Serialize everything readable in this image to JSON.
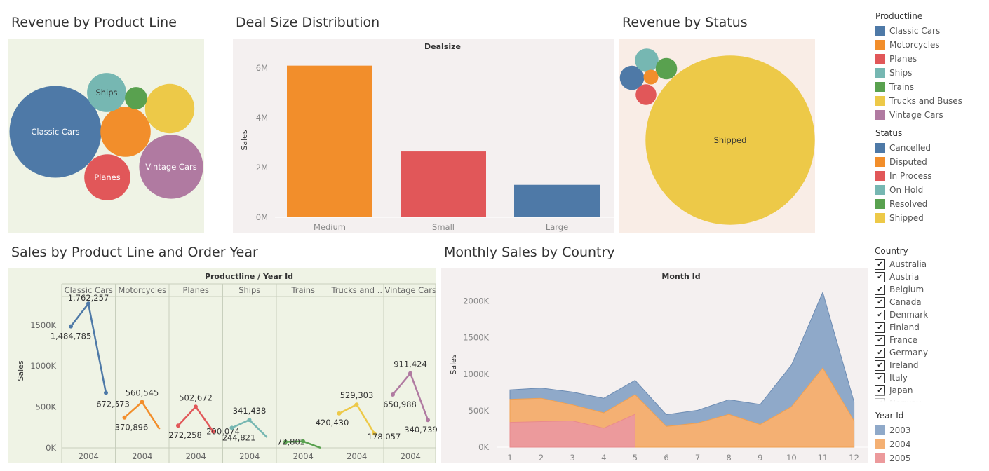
{
  "titles": {
    "product_line": "Revenue by Product Line",
    "deal_size": "Deal Size Distribution",
    "status": "Revenue by Status",
    "year_lines": "Sales by Product Line and Order Year",
    "monthly": "Monthly Sales by Country"
  },
  "colors": {
    "classic_cars": "#4e79a7",
    "motorcycles": "#f28e2b",
    "planes": "#e15759",
    "ships": "#76b7b2",
    "trains": "#59a14f",
    "trucks": "#edc948",
    "vintage": "#b07aa1",
    "bg_green": "#eff3e5",
    "bg_grey": "#f4f0f0",
    "bg_pink": "#f9ede6"
  },
  "legend_productline": {
    "title": "Productline",
    "items": [
      {
        "label": "Classic Cars",
        "color": "#4e79a7"
      },
      {
        "label": "Motorcycles",
        "color": "#f28e2b"
      },
      {
        "label": "Planes",
        "color": "#e15759"
      },
      {
        "label": "Ships",
        "color": "#76b7b2"
      },
      {
        "label": "Trains",
        "color": "#59a14f"
      },
      {
        "label": "Trucks and Buses",
        "color": "#edc948"
      },
      {
        "label": "Vintage Cars",
        "color": "#b07aa1"
      }
    ]
  },
  "legend_status": {
    "title": "Status",
    "items": [
      {
        "label": "Cancelled",
        "color": "#4e79a7"
      },
      {
        "label": "Disputed",
        "color": "#f28e2b"
      },
      {
        "label": "In Process",
        "color": "#e15759"
      },
      {
        "label": "On Hold",
        "color": "#76b7b2"
      },
      {
        "label": "Resolved",
        "color": "#59a14f"
      },
      {
        "label": "Shipped",
        "color": "#edc948"
      }
    ]
  },
  "country_filter": {
    "title": "Country",
    "items": [
      "Australia",
      "Austria",
      "Belgium",
      "Canada",
      "Denmark",
      "Finland",
      "France",
      "Germany",
      "Ireland",
      "Italy",
      "Japan",
      "Norway"
    ]
  },
  "legend_year": {
    "title": "Year Id",
    "items": [
      {
        "label": "2003",
        "color": "#8fa9c9"
      },
      {
        "label": "2004",
        "color": "#f4b073"
      },
      {
        "label": "2005",
        "color": "#ec9a9c"
      }
    ]
  },
  "chart_data": [
    {
      "id": "product_line_bubbles",
      "type": "bubble",
      "title": "Revenue by Product Line",
      "bubbles": [
        {
          "label": "Classic Cars",
          "show_label": true,
          "size": 3.92
        },
        {
          "label": "Vintage Cars",
          "show_label": true,
          "size": 1.9
        },
        {
          "label": "Motorcycles",
          "show_label": false,
          "size": 1.17
        },
        {
          "label": "Trucks and Buses",
          "show_label": false,
          "size": 1.13
        },
        {
          "label": "Planes",
          "show_label": true,
          "size": 0.98
        },
        {
          "label": "Ships",
          "show_label": true,
          "size": 0.71
        },
        {
          "label": "Trains",
          "show_label": false,
          "size": 0.23
        }
      ]
    },
    {
      "id": "deal_size",
      "type": "bar",
      "title": "Deal Size Distribution",
      "header": "Dealsize",
      "ylabel": "Sales",
      "categories": [
        "Medium",
        "Small",
        "Large"
      ],
      "values": [
        6087432,
        2643077,
        1302119
      ],
      "ylim": [
        0,
        6500000
      ],
      "yticks": [
        {
          "v": 0,
          "label": "0M"
        },
        {
          "v": 2000000,
          "label": "2M"
        },
        {
          "v": 4000000,
          "label": "4M"
        },
        {
          "v": 6000000,
          "label": "6M"
        }
      ]
    },
    {
      "id": "status_bubbles",
      "type": "bubble",
      "title": "Revenue by Status",
      "bubbles": [
        {
          "label": "Shipped",
          "show_label": true,
          "size": 9.29
        },
        {
          "label": "Cancelled",
          "show_label": false,
          "size": 0.19
        },
        {
          "label": "On Hold",
          "show_label": false,
          "size": 0.18
        },
        {
          "label": "Resolved",
          "show_label": false,
          "size": 0.15
        },
        {
          "label": "In Process",
          "show_label": false,
          "size": 0.14
        },
        {
          "label": "Disputed",
          "show_label": false,
          "size": 0.07
        }
      ]
    },
    {
      "id": "year_lines",
      "type": "line",
      "title": "Sales by Product Line and Order Year",
      "header": "Productline / Year Id",
      "ylabel": "Sales",
      "ylim": [
        0,
        1850000
      ],
      "yticks": [
        {
          "v": 0,
          "label": "0K"
        },
        {
          "v": 500000,
          "label": "500K"
        },
        {
          "v": 1000000,
          "label": "1000K"
        },
        {
          "v": 1500000,
          "label": "1500K"
        }
      ],
      "x_label": "2004",
      "panels": [
        {
          "name": "Classic Cars",
          "values": [
            1484785,
            1762257,
            672573
          ],
          "labels": [
            "1,484,785",
            "1,762,257",
            "672,573"
          ]
        },
        {
          "name": "Motorcycles",
          "values": [
            370896,
            560545,
            230000
          ],
          "labels": [
            "370,896",
            "560,545",
            ""
          ]
        },
        {
          "name": "Planes",
          "values": [
            272258,
            502672,
            200074
          ],
          "labels": [
            "272,258",
            "502,672",
            "200,074"
          ]
        },
        {
          "name": "Ships",
          "values": [
            244821,
            341438,
            130000
          ],
          "labels": [
            "244,821",
            "341,438",
            ""
          ]
        },
        {
          "name": "Trains",
          "values": [
            72802,
            80000,
            0
          ],
          "labels": [
            "72,802",
            "",
            ""
          ]
        },
        {
          "name": "Trucks and ..",
          "values": [
            420430,
            529303,
            178057
          ],
          "labels": [
            "420,430",
            "529,303",
            "178,057"
          ]
        },
        {
          "name": "Vintage Cars",
          "values": [
            650988,
            911424,
            340739
          ],
          "labels": [
            "650,988",
            "911,424",
            "340,739"
          ]
        }
      ]
    },
    {
      "id": "monthly_area",
      "type": "area",
      "title": "Monthly Sales by Country",
      "header": "Month Id",
      "ylabel": "Sales",
      "x": [
        1,
        2,
        3,
        4,
        5,
        6,
        7,
        8,
        9,
        10,
        11,
        12
      ],
      "ylim": [
        0,
        2150000
      ],
      "yticks": [
        {
          "v": 0,
          "label": "0K"
        },
        {
          "v": 500000,
          "label": "500K"
        },
        {
          "v": 1000000,
          "label": "1000K"
        },
        {
          "v": 1500000,
          "label": "1500K"
        },
        {
          "v": 2000000,
          "label": "2000K"
        }
      ],
      "series": [
        {
          "name": "2003",
          "values": [
            785000,
            810000,
            755000,
            670000,
            915000,
            445000,
            505000,
            650000,
            585000,
            1125000,
            2120000,
            620000
          ]
        },
        {
          "name": "2004",
          "values": [
            655000,
            670000,
            580000,
            470000,
            720000,
            285000,
            330000,
            450000,
            310000,
            555000,
            1085000,
            360000
          ]
        },
        {
          "name": "2005",
          "values": [
            340000,
            350000,
            360000,
            260000,
            450000,
            null,
            null,
            null,
            null,
            null,
            null,
            null
          ]
        }
      ]
    }
  ]
}
